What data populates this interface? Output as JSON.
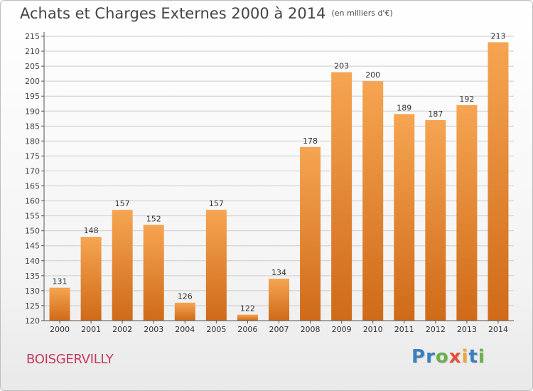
{
  "title": "Achats et Charges Externes 2000 à 2014",
  "subtitle": "(en milliers d'€)",
  "commune": "BOISGERVILLY",
  "logo": {
    "text": "Proxiti",
    "letters": [
      {
        "ch": "P",
        "color": "#3a7fc1"
      },
      {
        "ch": "r",
        "color": "#3a7fc1"
      },
      {
        "ch": "o",
        "color": "#6ab04c"
      },
      {
        "ch": "x",
        "color": "#e94e3c"
      },
      {
        "ch": "i",
        "color": "#f2a53a"
      },
      {
        "ch": "t",
        "color": "#3a7fc1"
      },
      {
        "ch": "i",
        "color": "#6ab04c"
      }
    ]
  },
  "colors": {
    "bar_top": "#f6a552",
    "bar_bottom": "#cf6a18",
    "axis": "#555555",
    "grid": "#cccccc",
    "commune": "#c23a5c"
  },
  "chart_data": {
    "type": "bar",
    "categories": [
      "2000",
      "2001",
      "2002",
      "2003",
      "2004",
      "2005",
      "2006",
      "2007",
      "2008",
      "2009",
      "2010",
      "2011",
      "2012",
      "2013",
      "2014"
    ],
    "values": [
      131,
      148,
      157,
      152,
      126,
      157,
      122,
      134,
      178,
      203,
      200,
      189,
      187,
      192,
      213
    ],
    "ylim": [
      120,
      215
    ],
    "yticks": [
      120,
      125,
      130,
      135,
      140,
      145,
      150,
      155,
      160,
      165,
      170,
      175,
      180,
      185,
      190,
      195,
      200,
      205,
      210,
      215
    ],
    "grid": true,
    "legend": "none"
  }
}
